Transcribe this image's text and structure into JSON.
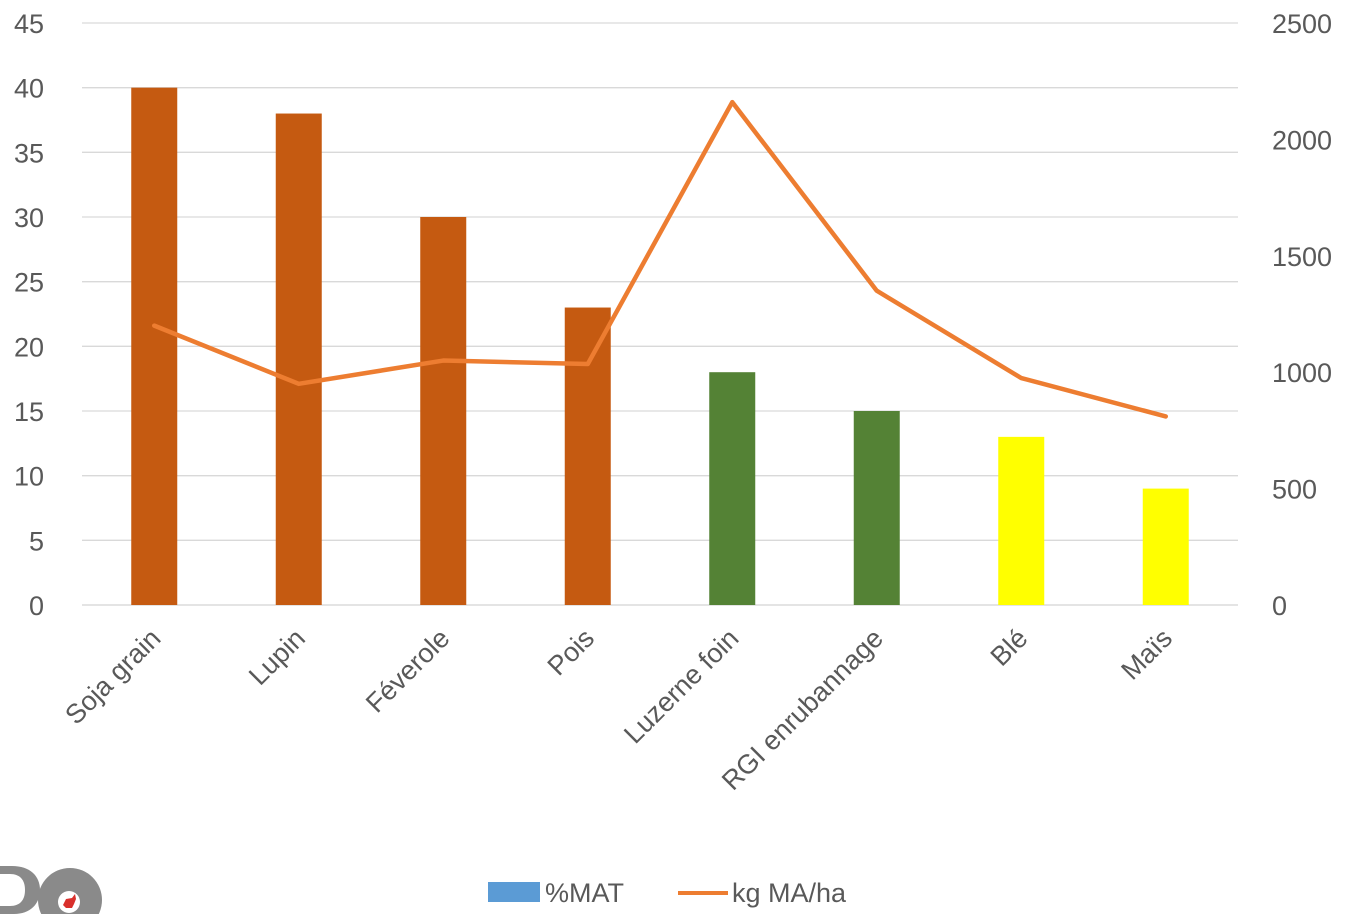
{
  "chart_data": {
    "type": "bar",
    "title": "",
    "categories": [
      "Soja grain",
      "Lupin",
      "Féverole",
      "Pois",
      "Luzerne foin",
      "RGI enrubannage",
      "Blé",
      "Maïs"
    ],
    "series": [
      {
        "name": "%MAT",
        "type": "bar",
        "axis": "left",
        "values": [
          40,
          38,
          30,
          23,
          18,
          15,
          13,
          9
        ],
        "bar_colors": [
          "#c55a11",
          "#c55a11",
          "#c55a11",
          "#c55a11",
          "#548235",
          "#548235",
          "#ffff00",
          "#ffff00"
        ],
        "legend_color": "#5b9bd5"
      },
      {
        "name": "kg MA/ha",
        "type": "line",
        "axis": "right",
        "values": [
          1200,
          950,
          1050,
          1035,
          2160,
          1350,
          975,
          810
        ],
        "color": "#ed7d31"
      }
    ],
    "y_left": {
      "min": 0,
      "max": 45,
      "ticks": [
        "0",
        "5",
        "10",
        "15",
        "20",
        "25",
        "30",
        "35",
        "40",
        "45"
      ]
    },
    "y_right": {
      "min": 0,
      "max": 2500,
      "ticks": [
        "0",
        "500",
        "1000",
        "1500",
        "2000",
        "2500"
      ]
    },
    "grid": true,
    "legend": "bottom"
  },
  "colors": {
    "grid": "#d9d9d9",
    "text": "#595959",
    "logo_red": "#d9302c"
  },
  "logo": {
    "icon": "goat-logo-icon"
  }
}
